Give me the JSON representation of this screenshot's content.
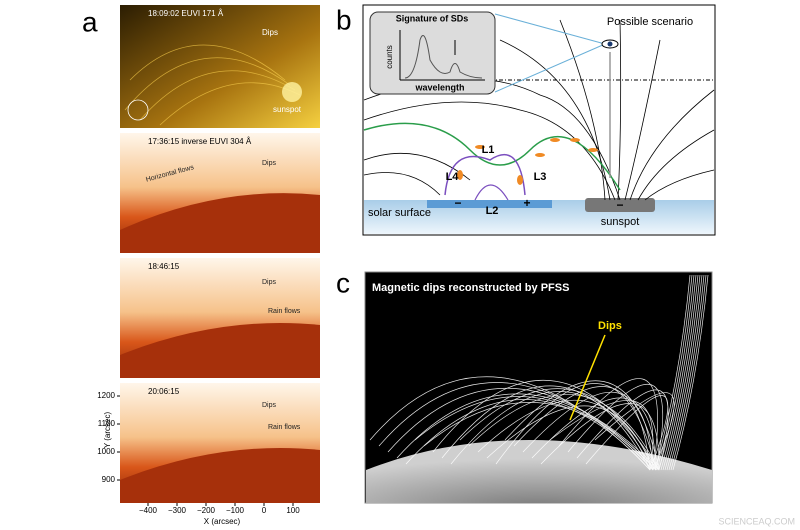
{
  "panel_a": {
    "label": "a",
    "frames": [
      {
        "time": "18:09:02  EUVI 171 Å",
        "notes": [
          "Dips",
          "sunspot"
        ]
      },
      {
        "time": "17:36:15   inverse EUVI 304 Å",
        "notes": [
          "Dips",
          "Horizontal flows"
        ]
      },
      {
        "time": "18:46:15",
        "notes": [
          "Dips",
          "Rain flows"
        ]
      },
      {
        "time": "20:06:15",
        "notes": [
          "Dips",
          "Rain flows"
        ]
      }
    ],
    "y_axis": {
      "label": "Y (arcsec)",
      "ticks": [
        "1200",
        "1100",
        "1000",
        "900"
      ]
    },
    "x_axis": {
      "label": "X (arcsec)",
      "ticks": [
        "−400",
        "−300",
        "−200",
        "−100",
        "0",
        "100"
      ]
    }
  },
  "panel_b": {
    "label": "b",
    "inset_title": "Signature of SDs",
    "inset_y": "counts",
    "inset_x": "wavelength",
    "scenario": "Possible scenario",
    "loops": [
      "L1",
      "L2",
      "L3",
      "L4"
    ],
    "surface": "solar surface",
    "sunspot": "sunspot",
    "polarities": [
      "−",
      "+",
      "−"
    ]
  },
  "panel_c": {
    "label": "c",
    "title": "Magnetic dips reconstructed by PFSS",
    "note": "Dips"
  },
  "watermark": "SCIENCEAQ.COM"
}
